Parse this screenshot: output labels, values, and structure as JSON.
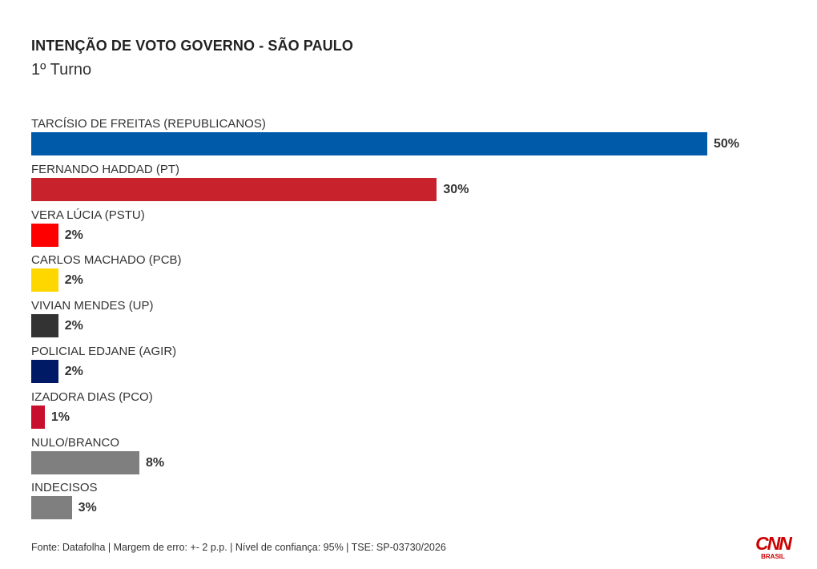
{
  "header": {
    "title": "INTENÇÃO DE VOTO GOVERNO - SÃO PAULO",
    "subtitle": "1º Turno"
  },
  "chart_data": {
    "type": "bar",
    "orientation": "horizontal",
    "title": "INTENÇÃO DE VOTO GOVERNO - SÃO PAULO",
    "subtitle": "1º Turno",
    "xlim": [
      0,
      50
    ],
    "grid": false,
    "unit": "%",
    "categories": [
      "TARCÍSIO DE FREITAS (REPUBLICANOS)",
      "FERNANDO HADDAD (PT)",
      "VERA LÚCIA (PSTU)",
      "CARLOS MACHADO (PCB)",
      "VIVIAN MENDES (UP)",
      "POLICIAL EDJANE (AGIR)",
      "IZADORA DIAS (PCO)",
      "NULO/BRANCO",
      "INDECISOS"
    ],
    "values": [
      50,
      30,
      2,
      2,
      2,
      2,
      1,
      8,
      3
    ],
    "value_labels": [
      "50%",
      "30%",
      "2%",
      "2%",
      "2%",
      "2%",
      "1%",
      "8%",
      "3%"
    ],
    "colors": [
      "#005aaa",
      "#c8232c",
      "#ff0000",
      "#ffd700",
      "#333333",
      "#001a66",
      "#c8102e",
      "#7f7f7f",
      "#7f7f7f"
    ]
  },
  "footer": {
    "source": "Fonte: Datafolha | Margem de erro: +- 2 p.p. | Nível de confiança: 95% | TSE: SP-03730/2026"
  },
  "logo": {
    "text": "CNN",
    "sub": "BRASIL",
    "color": "#cc0000"
  }
}
